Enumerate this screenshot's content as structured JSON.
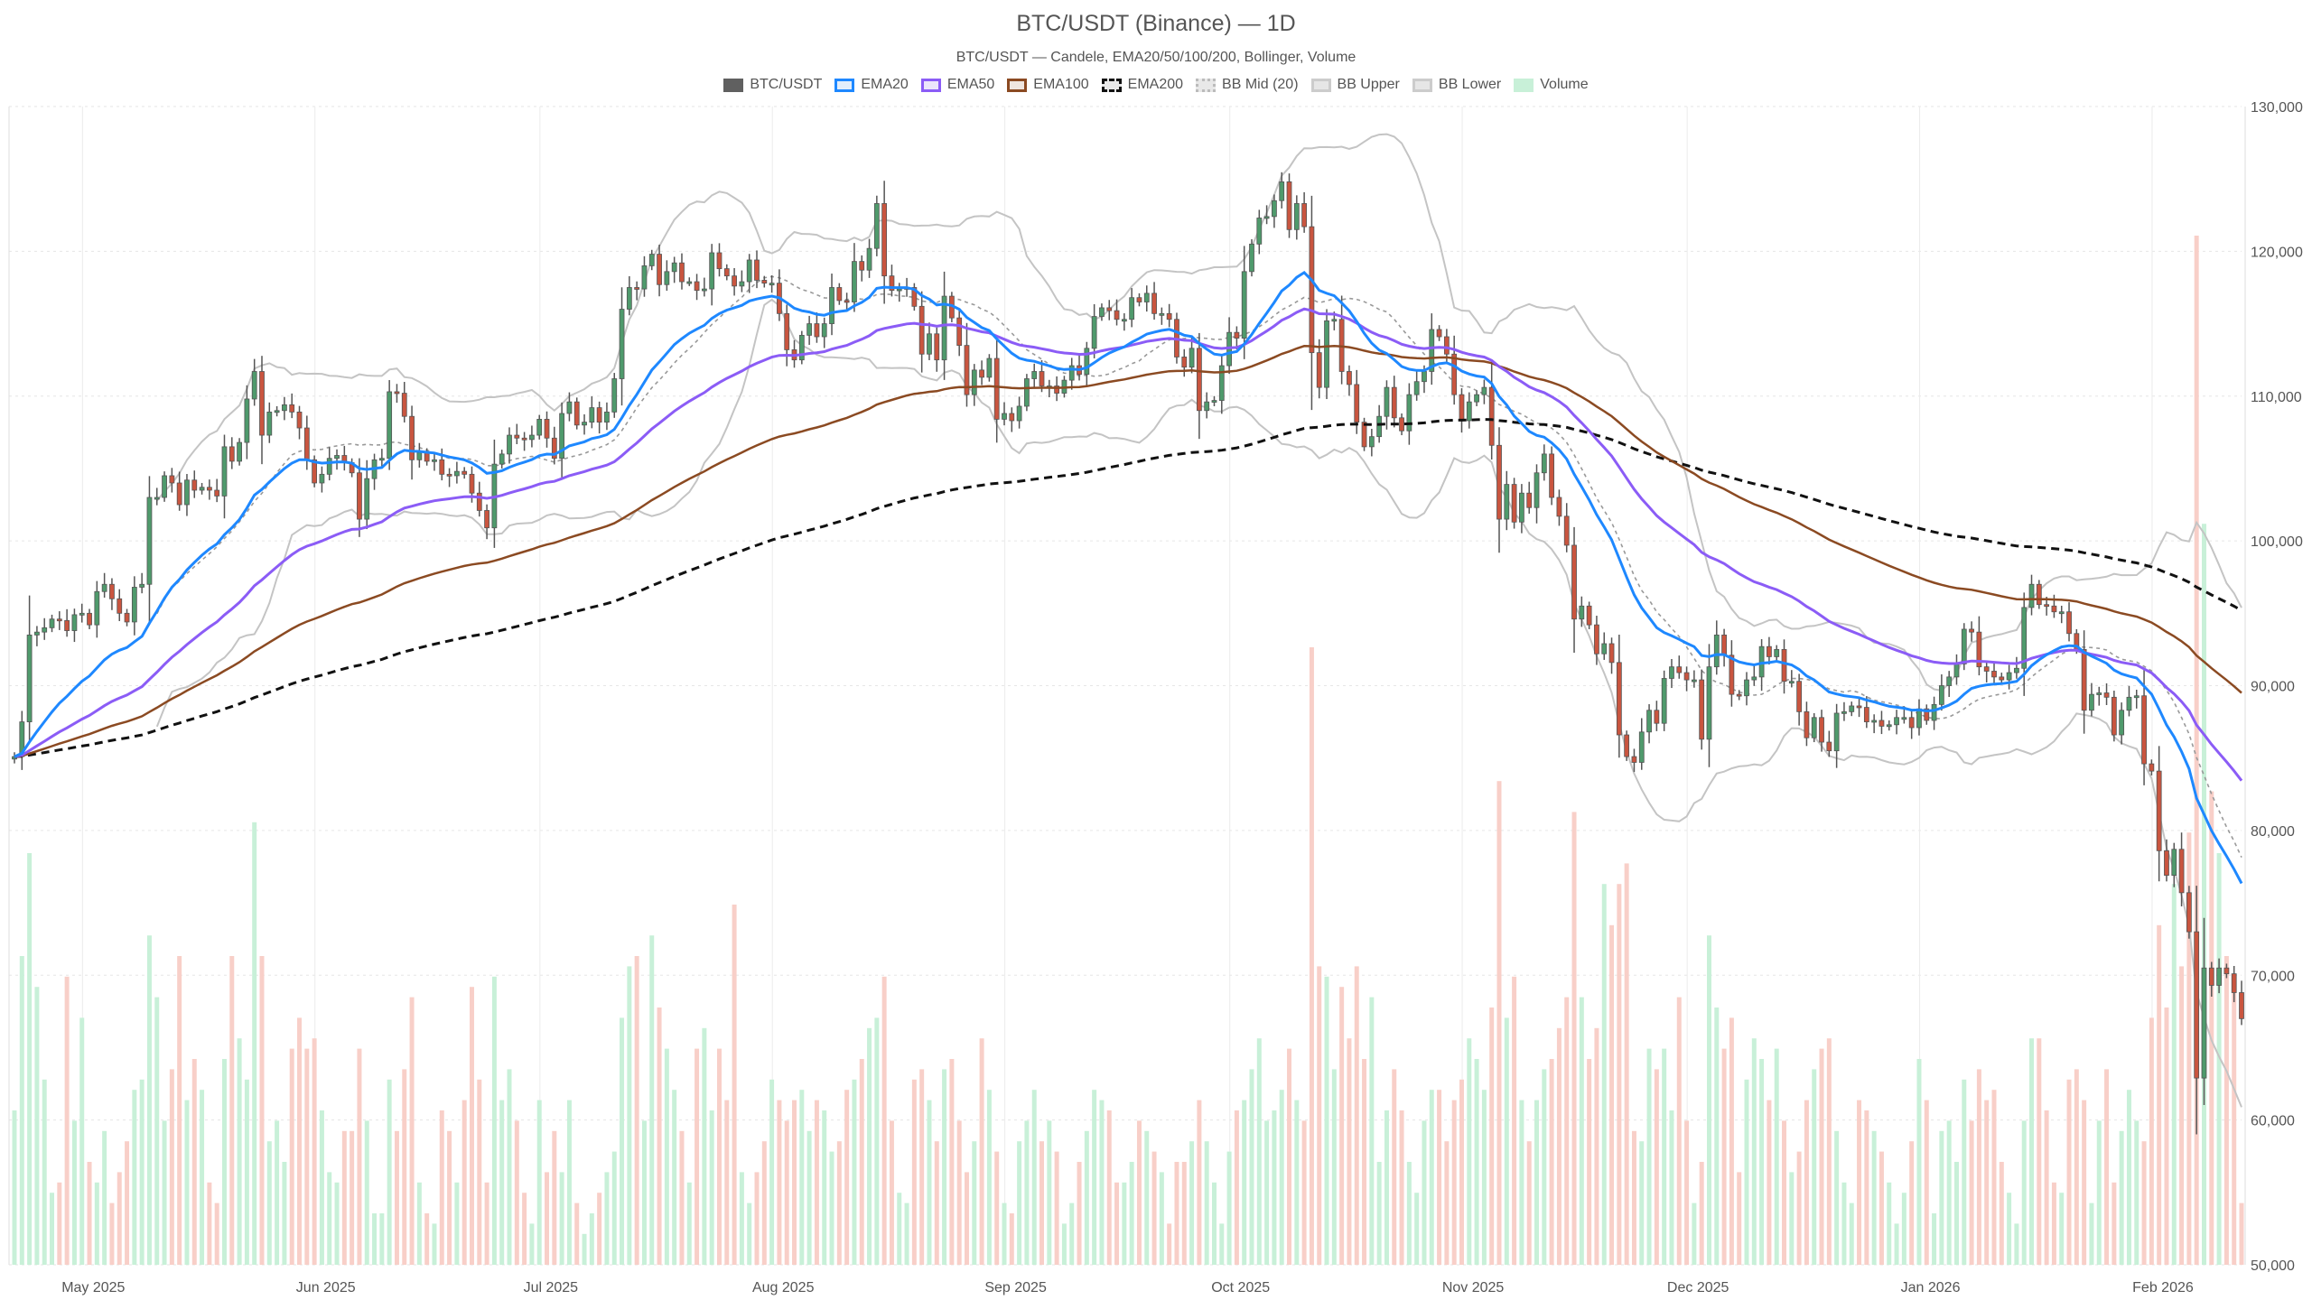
{
  "chart_data": {
    "type": "candlestick",
    "title": "BTC/USDT (Binance) — 1D",
    "subtitle": "BTC/USDT — Candele, EMA20/50/100/200, Bollinger, Volume",
    "legend": [
      {
        "name": "BTC/USDT",
        "color": "#606060",
        "fill": "#606060",
        "style": "solid"
      },
      {
        "name": "EMA20",
        "color": "#1e88ff",
        "fill": "#e3eefb",
        "style": "solid"
      },
      {
        "name": "EMA50",
        "color": "#8b5cf6",
        "fill": "#ece6fb",
        "style": "solid"
      },
      {
        "name": "EMA100",
        "color": "#8b4a22",
        "fill": "#efe6e0",
        "style": "solid"
      },
      {
        "name": "EMA200",
        "color": "#111111",
        "fill": "#e8e8e8",
        "style": "dashed"
      },
      {
        "name": "BB Mid (20)",
        "color": "#bbbbbb",
        "fill": "#e8e8e8",
        "style": "dotted"
      },
      {
        "name": "BB Upper",
        "color": "#cccccc",
        "fill": "#e6e6e6",
        "style": "solid"
      },
      {
        "name": "BB Lower",
        "color": "#cccccc",
        "fill": "#e6e6e6",
        "style": "solid"
      },
      {
        "name": "Volume",
        "color": "#c8f0d8",
        "fill": "#c8f0d8",
        "style": "solid"
      }
    ],
    "legend_placement": "top-center",
    "colors": {
      "up": "#4f9a6c",
      "down": "#c9553f",
      "volume_up": "#c8f0d8",
      "volume_down": "#f8cfc8",
      "bb_band": "#c4c4c4",
      "bb_mid": "#999999"
    },
    "ylim": [
      50000,
      130000
    ],
    "y_axis_side": "right",
    "y_ticks": [
      "50,000",
      "60,000",
      "70,000",
      "80,000",
      "90,000",
      "100,000",
      "110,000",
      "120,000",
      "130,000"
    ],
    "y_tick_values": [
      50000,
      60000,
      70000,
      80000,
      90000,
      100000,
      110000,
      120000,
      130000
    ],
    "x_ticks": [
      {
        "label": "May 2025",
        "date": "2025-05-01"
      },
      {
        "label": "Jun 2025",
        "date": "2025-06-01"
      },
      {
        "label": "Jul 2025",
        "date": "2025-07-01"
      },
      {
        "label": "Aug 2025",
        "date": "2025-08-01"
      },
      {
        "label": "Sep 2025",
        "date": "2025-09-01"
      },
      {
        "label": "Oct 2025",
        "date": "2025-10-01"
      },
      {
        "label": "Nov 2025",
        "date": "2025-11-01"
      },
      {
        "label": "Dec 2025",
        "date": "2025-12-01"
      },
      {
        "label": "Jan 2026",
        "date": "2026-01-01"
      },
      {
        "label": "Feb 2026",
        "date": "2026-02-01"
      }
    ],
    "grid": true,
    "close_thousands": [
      85.1,
      87.5,
      93.5,
      93.7,
      94.0,
      94.6,
      94.5,
      93.8,
      94.9,
      95.0,
      94.2,
      96.5,
      97.0,
      96.0,
      95.0,
      94.4,
      96.8,
      97.0,
      103.0,
      103.0,
      104.5,
      104.0,
      102.5,
      104.2,
      103.5,
      103.7,
      103.5,
      103.1,
      106.5,
      105.5,
      106.8,
      109.8,
      111.7,
      107.3,
      108.9,
      109.0,
      109.4,
      108.9,
      107.8,
      105.6,
      104.0,
      104.6,
      105.7,
      105.9,
      105.4,
      104.7,
      101.5,
      104.3,
      105.6,
      105.7,
      110.3,
      110.2,
      108.6,
      105.6,
      106.1,
      105.5,
      105.6,
      104.6,
      104.5,
      104.8,
      104.6,
      103.3,
      102.1,
      100.9,
      105.3,
      106.0,
      107.3,
      107.1,
      107.0,
      107.3,
      108.4,
      107.1,
      105.7,
      108.8,
      109.6,
      108.0,
      108.2,
      109.2,
      108.2,
      108.9,
      111.2,
      116.0,
      117.5,
      117.4,
      119.0,
      119.8,
      117.7,
      118.6,
      119.2,
      117.9,
      117.9,
      117.3,
      117.4,
      119.9,
      118.8,
      118.3,
      117.6,
      117.9,
      119.4,
      118.0,
      117.8,
      117.8,
      115.7,
      113.2,
      112.5,
      114.2,
      115.0,
      114.1,
      115.0,
      117.5,
      116.6,
      116.5,
      119.3,
      118.7,
      120.2,
      123.3,
      118.3,
      117.3,
      117.4,
      117.5,
      116.2,
      112.9,
      114.3,
      112.5,
      116.9,
      115.4,
      113.5,
      110.1,
      111.8,
      111.3,
      112.6,
      108.4,
      108.8,
      108.3,
      109.3,
      111.2,
      111.7,
      110.7,
      110.7,
      110.2,
      111.1,
      112.1,
      111.5,
      113.3,
      115.5,
      116.1,
      115.9,
      115.3,
      115.3,
      116.8,
      116.5,
      117.1,
      115.7,
      115.7,
      115.3,
      112.7,
      112.0,
      113.3,
      109.0,
      109.6,
      109.7,
      112.1,
      114.4,
      114.0,
      118.6,
      120.5,
      122.3,
      122.4,
      123.5,
      124.8,
      121.5,
      123.3,
      121.7,
      113.0,
      110.6,
      115.2,
      115.3,
      111.7,
      110.8,
      108.2,
      106.5,
      107.2,
      108.6,
      110.6,
      108.5,
      107.6,
      110.1,
      111.0,
      111.7,
      114.6,
      114.1,
      112.9,
      110.1,
      108.3,
      109.6,
      110.1,
      110.6,
      106.6,
      101.5,
      103.9,
      101.3,
      103.3,
      102.3,
      104.7,
      106.0,
      103.0,
      101.7,
      99.7,
      94.6,
      95.5,
      94.2,
      92.2,
      92.9,
      91.6,
      86.6,
      85.1,
      84.7,
      86.8,
      88.3,
      87.4,
      90.5,
      91.3,
      90.9,
      90.4,
      90.4,
      86.3,
      91.3,
      93.5,
      92.1,
      89.4,
      89.3,
      90.4,
      90.6,
      92.7,
      92.0,
      92.5,
      90.3,
      90.3,
      88.2,
      86.4,
      87.8,
      86.1,
      85.5,
      88.1,
      88.2,
      88.6,
      88.5,
      87.5,
      87.6,
      87.2,
      87.3,
      87.8,
      87.8,
      87.1,
      88.4,
      87.6,
      88.7,
      90.0,
      90.6,
      91.5,
      93.9,
      93.7,
      91.3,
      91.0,
      90.6,
      90.4,
      90.9,
      91.2,
      95.4,
      97.0,
      95.6,
      95.5,
      95.1,
      95.1,
      93.6,
      92.5,
      88.3,
      89.4,
      89.5,
      89.2,
      86.6,
      88.3,
      89.2,
      89.3,
      84.6,
      84.1,
      78.6,
      76.9,
      78.7,
      75.7,
      73.0,
      62.9,
      70.5,
      69.3,
      70.5,
      70.1,
      68.8,
      67.0
    ],
    "volume_relative": [
      15,
      30,
      40,
      27,
      18,
      7,
      8,
      28,
      14,
      24,
      10,
      8,
      13,
      6,
      9,
      12,
      17,
      18,
      32,
      26,
      14,
      19,
      30,
      16,
      20,
      17,
      8,
      6,
      20,
      30,
      22,
      18,
      43,
      30,
      12,
      14,
      10,
      21,
      24,
      21,
      22,
      15,
      9,
      8,
      13,
      13,
      21,
      14,
      5,
      5,
      18,
      13,
      19,
      26,
      8,
      5,
      4,
      15,
      13,
      8,
      16,
      27,
      18,
      8,
      28,
      16,
      19,
      14,
      7,
      4,
      16,
      9,
      13,
      9,
      16,
      6,
      3,
      5,
      7,
      9,
      11,
      24,
      29,
      30,
      14,
      32,
      25,
      21,
      17,
      13,
      8,
      21,
      23,
      15,
      21,
      16,
      35,
      9,
      6,
      9,
      12,
      18,
      16,
      14,
      16,
      17,
      13,
      16,
      15,
      11,
      12,
      17,
      18,
      20,
      23,
      24,
      28,
      14,
      7,
      6,
      18,
      19,
      16,
      12,
      19,
      20,
      14,
      9,
      12,
      22,
      17,
      11,
      6,
      5,
      12,
      14,
      17,
      12,
      14,
      11,
      4,
      6,
      10,
      13,
      17,
      16,
      15,
      8,
      8,
      10,
      14,
      13,
      11,
      9,
      4,
      10,
      10,
      12,
      16,
      12,
      8,
      4,
      11,
      15,
      16,
      19,
      22,
      14,
      15,
      17,
      21,
      16,
      14,
      60,
      29,
      28,
      19,
      27,
      22,
      29,
      20,
      26,
      10,
      15,
      19,
      15,
      10,
      7,
      14,
      17,
      17,
      12,
      16,
      18,
      22,
      20,
      17,
      25,
      47,
      24,
      28,
      16,
      12,
      16,
      19,
      20,
      23,
      26,
      44,
      26,
      20,
      23,
      37,
      33,
      37,
      39,
      13,
      12,
      21,
      19,
      21,
      15,
      26,
      14,
      6,
      10,
      32,
      25,
      21,
      24,
      9,
      18,
      22,
      20,
      16,
      21,
      14,
      9,
      11,
      16,
      19,
      21,
      22,
      13,
      8,
      6,
      16,
      15,
      13,
      11,
      8,
      4,
      7,
      12,
      20,
      16,
      5,
      13,
      14,
      10,
      18,
      14,
      19,
      16,
      17,
      10,
      7,
      4,
      14,
      22,
      22,
      15,
      8,
      7,
      18,
      19,
      16,
      6,
      14,
      19,
      8,
      13,
      17,
      14,
      12,
      24,
      33,
      25,
      37,
      29,
      42,
      100,
      72,
      46,
      40,
      30,
      28,
      6
    ]
  }
}
